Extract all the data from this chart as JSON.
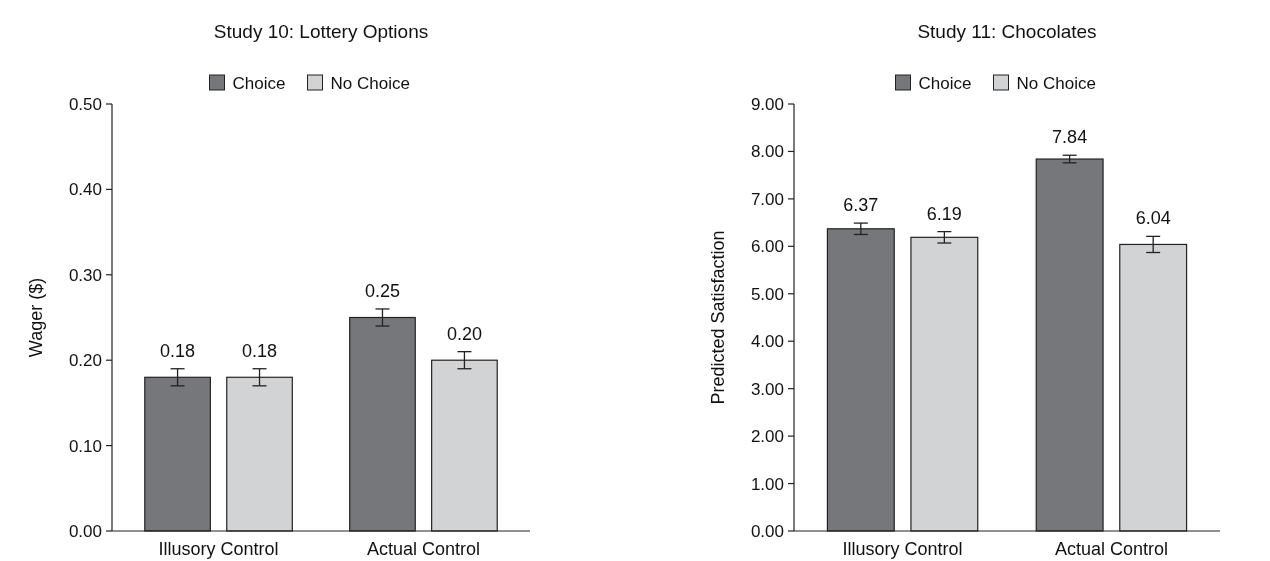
{
  "chart_data": [
    {
      "type": "bar",
      "title": "Study 10: Lottery Options",
      "ylabel": "Wager ($)",
      "categories": [
        "Illusory Control",
        "Actual Control"
      ],
      "series": [
        {
          "name": "Choice",
          "color": "#76777b",
          "values": [
            0.18,
            0.25
          ],
          "errors": [
            0.01,
            0.01
          ],
          "value_labels": [
            "0.18",
            "0.25"
          ]
        },
        {
          "name": "No Choice",
          "color": "#d2d3d5",
          "values": [
            0.18,
            0.2
          ],
          "errors": [
            0.01,
            0.01
          ],
          "value_labels": [
            "0.18",
            "0.20"
          ]
        }
      ],
      "ylim": [
        0,
        0.5
      ],
      "yticks": [
        {
          "value": 0,
          "label": "0.00"
        },
        {
          "value": 0.1,
          "label": "0.10"
        },
        {
          "value": 0.2,
          "label": "0.20"
        },
        {
          "value": 0.3,
          "label": "0.30"
        },
        {
          "value": 0.4,
          "label": "0.40"
        },
        {
          "value": 0.5,
          "label": "0.50"
        }
      ],
      "legend": "top",
      "grid": false
    },
    {
      "type": "bar",
      "title": "Study 11: Chocolates",
      "ylabel": "Predicted Satisfaction",
      "categories": [
        "Illusory Control",
        "Actual Control"
      ],
      "series": [
        {
          "name": "Choice",
          "color": "#76777b",
          "values": [
            6.37,
            7.84
          ],
          "errors": [
            0.12,
            0.08
          ],
          "value_labels": [
            "6.37",
            "7.84"
          ]
        },
        {
          "name": "No Choice",
          "color": "#d2d3d5",
          "values": [
            6.19,
            6.04
          ],
          "errors": [
            0.12,
            0.17
          ],
          "value_labels": [
            "6.19",
            "6.04"
          ]
        }
      ],
      "ylim": [
        0,
        9
      ],
      "yticks": [
        {
          "value": 0,
          "label": "0.00"
        },
        {
          "value": 1,
          "label": "1.00"
        },
        {
          "value": 2,
          "label": "2.00"
        },
        {
          "value": 3,
          "label": "3.00"
        },
        {
          "value": 4,
          "label": "4.00"
        },
        {
          "value": 5,
          "label": "5.00"
        },
        {
          "value": 6,
          "label": "6.00"
        },
        {
          "value": 7,
          "label": "7.00"
        },
        {
          "value": 8,
          "label": "8.00"
        },
        {
          "value": 9,
          "label": "9.00"
        }
      ],
      "legend": "top",
      "grid": false
    }
  ]
}
